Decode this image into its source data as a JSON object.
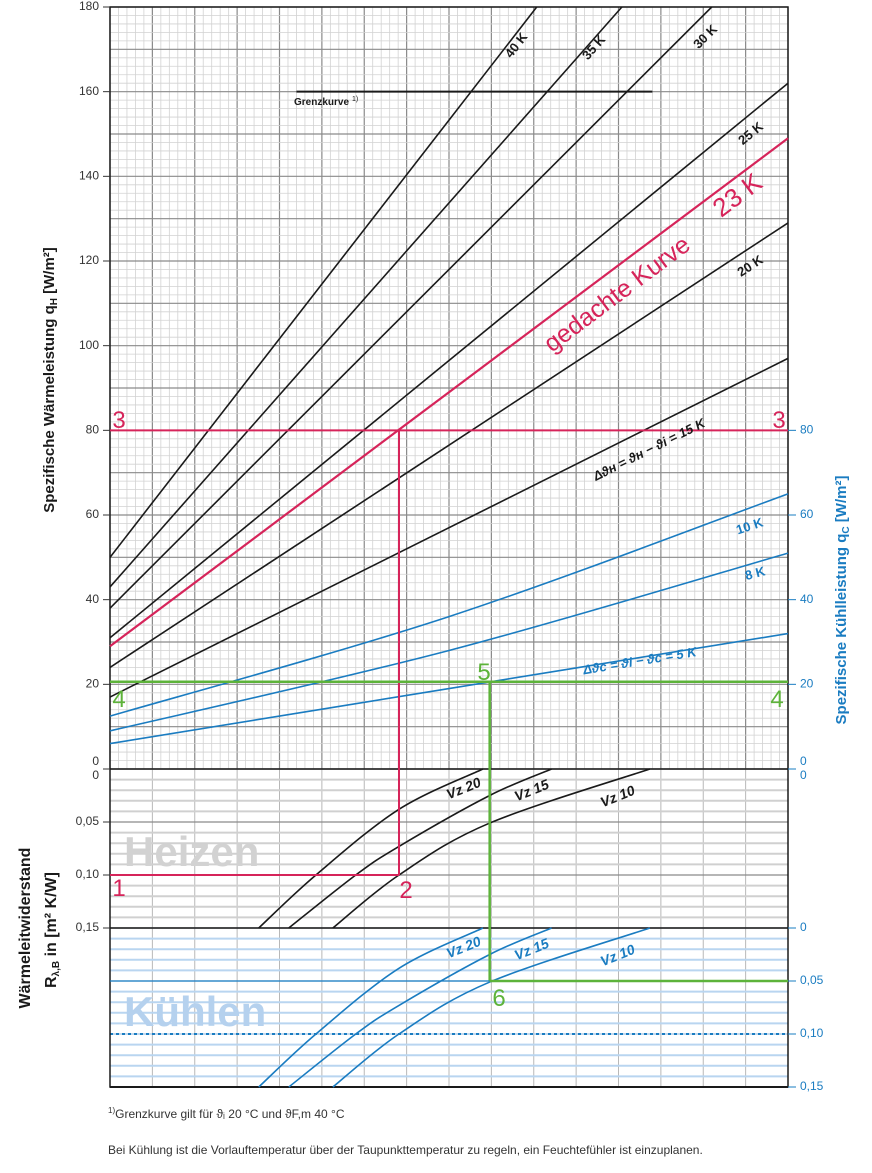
{
  "chart_data": {
    "type": "line",
    "title": "",
    "upper": {
      "ylabel": "Spezifische Wärmeleistung q",
      "ylabel_sub": "H",
      "ylabel_unit": " [W/m²]",
      "ylim": [
        0,
        180
      ],
      "yticks": [
        "0",
        "20",
        "40",
        "60",
        "80",
        "100",
        "120",
        "140",
        "160",
        "180"
      ],
      "ylabel_right": "Spezifische Kühlleistung q",
      "ylabel_right_sub": "C",
      "ylabel_right_unit": " [W/m²]",
      "yticks_right": [
        "0",
        "20",
        "40",
        "60",
        "80"
      ],
      "xlim": [
        0,
        16
      ],
      "series": [
        {
          "name": "40 K",
          "color": "#1a1a1a",
          "points": [
            [
              0,
              50
            ],
            [
              10.07,
              180
            ]
          ]
        },
        {
          "name": "35 K",
          "color": "#1a1a1a",
          "points": [
            [
              0,
              43
            ],
            [
              12.08,
              180
            ]
          ]
        },
        {
          "name": "30 K",
          "color": "#1a1a1a",
          "points": [
            [
              0,
              38
            ],
            [
              14.2,
              180
            ]
          ]
        },
        {
          "name": "25 K",
          "color": "#1a1a1a",
          "points": [
            [
              0,
              31
            ],
            [
              16,
              162
            ]
          ]
        },
        {
          "name": "23 K",
          "color": "#d6245a",
          "points": [
            [
              0,
              29
            ],
            [
              16,
              149
            ]
          ]
        },
        {
          "name": "20 K",
          "color": "#1a1a1a",
          "points": [
            [
              0,
              24
            ],
            [
              16,
              129
            ]
          ]
        },
        {
          "name": "Δϑн = ϑн − ϑi = 15 K",
          "color": "#1a1a1a",
          "points": [
            [
              0,
              17
            ],
            [
              16,
              97
            ]
          ]
        },
        {
          "name": "10 K",
          "color": "#1a7cc1",
          "points": [
            [
              0,
              12.5
            ],
            [
              8,
              36
            ],
            [
              16,
              65
            ]
          ]
        },
        {
          "name": "8 K",
          "color": "#1a7cc1",
          "points": [
            [
              0,
              9
            ],
            [
              8,
              28
            ],
            [
              16,
              51
            ]
          ]
        },
        {
          "name": "Δϑc = ϑi − ϑc = 5 K",
          "color": "#1a7cc1",
          "points": [
            [
              0,
              6
            ],
            [
              8,
              19
            ],
            [
              16,
              32
            ]
          ]
        }
      ],
      "annotations": {
        "curve_label": "gedachte Kurve",
        "grenzkurve_label": "Grenzkurve",
        "grenzkurve_sup": "1)",
        "grenzkurve_value": 160,
        "grenzkurve_x": [
          4.4,
          12.8
        ]
      }
    },
    "lower": {
      "ylabel_line1": "Wärmeleitwiderstand",
      "ylabel_line2": "R",
      "ylabel_line2_sub": "λ,B",
      "ylabel_line2_unit": " in [m² K/W]",
      "heating_label": "Heizen",
      "cooling_label": "Kühlen",
      "yticks": [
        "0",
        "0,05",
        "0,10",
        "0,15"
      ],
      "yticks_right_cooling": [
        "0",
        "0,05",
        "0,10",
        "0,15"
      ],
      "yticks_right_heating": [
        "0"
      ],
      "ylim": [
        0,
        0.15
      ],
      "dotted_line_value": 0.1,
      "series": [
        {
          "name": "Vz 20",
          "points": [
            [
              3.51,
              0.15
            ],
            [
              4.86,
              0.1
            ],
            [
              6.82,
              0.038
            ],
            [
              8.8,
              0
            ]
          ]
        },
        {
          "name": "Vz 15",
          "points": [
            [
              4.22,
              0.15
            ],
            [
              5.8,
              0.1
            ],
            [
              6.82,
              0.073
            ],
            [
              8.96,
              0.025
            ],
            [
              10.42,
              0
            ]
          ]
        },
        {
          "name": "Vz 10",
          "points": [
            [
              5.26,
              0.15
            ],
            [
              6.82,
              0.1
            ],
            [
              8.96,
              0.051
            ],
            [
              12.74,
              0
            ]
          ]
        }
      ]
    },
    "example_heating": {
      "color": "#d6245a",
      "q": 80,
      "x": 6.82,
      "R": 0.1,
      "markers": [
        "1",
        "2",
        "3",
        "3"
      ]
    },
    "example_cooling": {
      "color": "#5db33a",
      "q": 20.6,
      "x": 8.96,
      "R": 0.05,
      "markers": [
        "4",
        "4",
        "5",
        "6"
      ]
    }
  },
  "footnote": {
    "sup": "1)",
    "text": "Grenzkurve gilt für ϑᵢ 20 °C und ϑF,m 40 °C"
  },
  "note": "Bei Kühlung ist die Vorlauftemperatur über der Taupunkttemperatur zu regeln, ein Feuchtefühler ist einzuplanen.",
  "colors": {
    "heating_line": "#1a1a1a",
    "cooling": "#1a7cc1",
    "red": "#d6245a",
    "green": "#5db33a"
  }
}
